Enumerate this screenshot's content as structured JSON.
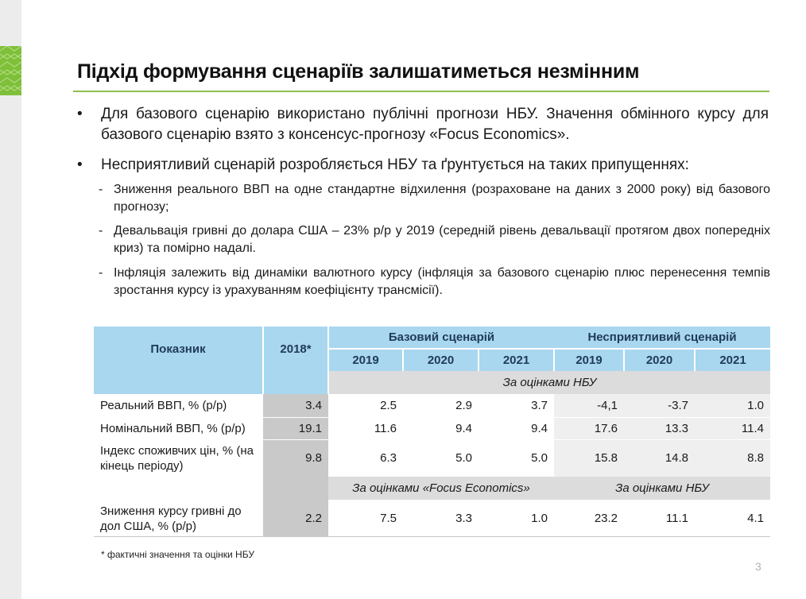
{
  "title": "Підхід формування сценаріїв залишатиметься незмінним",
  "bullets": [
    {
      "marker": "•",
      "text": "Для базового сценарію використано публічні прогнози НБУ. Значення обмінного курсу для базового сценарію взято з консенсус-прогнозу «Focus Economics»."
    },
    {
      "marker": "•",
      "text": "Несприятливий сценарій розробляється НБУ та ґрунтується на таких припущеннях:"
    }
  ],
  "subbullets": [
    {
      "marker": "-",
      "text": "Зниження реального ВВП на одне стандартне відхилення (розраховане на даних з 2000 року) від базового прогнозу;"
    },
    {
      "marker": "-",
      "text": "Девальвація гривні до долара США – 23% р/р у 2019 (середній рівень девальвації протягом двох попередніх криз) та помірно надалі."
    },
    {
      "marker": "-",
      "text": "Інфляція залежить від динаміки валютного курсу (інфляція за базового сценарію плюс перенесення темпів зростання курсу із урахуванням коефіцієнту трансмісії)."
    }
  ],
  "table": {
    "indicator_header": "Показник",
    "year_2018": "2018*",
    "baseline_label": "Базовий сценарій",
    "adverse_label": "Несприятливий сценарій",
    "years": [
      "2019",
      "2020",
      "2021",
      "2019",
      "2020",
      "2021"
    ],
    "nbu_banner": "За оцінками НБУ",
    "focus_banner": "За оцінками «Focus Economics»",
    "nbu_banner_2": "За оцінками НБУ",
    "rows": [
      {
        "label": "Реальний ВВП, % (р/р)",
        "v2018": "3.4",
        "values": [
          "2.5",
          "2.9",
          "3.7",
          "-4,1",
          "-3.7",
          "1.0"
        ]
      },
      {
        "label": "Номінальний ВВП, % (р/р)",
        "v2018": "19.1",
        "values": [
          "11.6",
          "9.4",
          "9.4",
          "17.6",
          "13.3",
          "11.4"
        ]
      },
      {
        "label": "Індекс споживчих цін, % (на кінець періоду)",
        "v2018": "9.8",
        "values": [
          "6.3",
          "5.0",
          "5.0",
          "15.8",
          "14.8",
          "8.8"
        ]
      }
    ],
    "fx_row": {
      "label": "Зниження курсу гривні до дол США, % (р/р)",
      "v2018": "2.2",
      "values": [
        "7.5",
        "3.3",
        "1.0",
        "23.2",
        "11.1",
        "4.1"
      ]
    }
  },
  "footnote": "* фактичні значення та оцінки НБУ",
  "page_number": "3",
  "colors": {
    "accent_green": "#8cc04b",
    "header_blue": "#a9d7ef",
    "header_text": "#1f3a5a"
  }
}
